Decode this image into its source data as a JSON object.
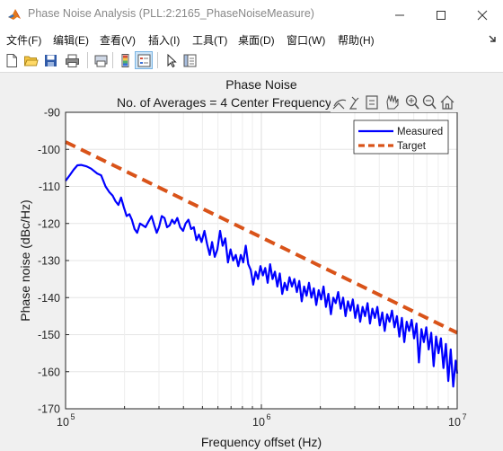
{
  "window": {
    "title": "Phase Noise Analysis (PLL:2:2165_PhaseNoiseMeasure)"
  },
  "menu": {
    "items": [
      {
        "label": "文件(F)"
      },
      {
        "label": "编辑(E)"
      },
      {
        "label": "查看(V)"
      },
      {
        "label": "插入(I)"
      },
      {
        "label": "工具(T)"
      },
      {
        "label": "桌面(D)"
      },
      {
        "label": "窗口(W)"
      },
      {
        "label": "帮助(H)"
      }
    ]
  },
  "toolbar": {
    "buttons": [
      "new-file-icon",
      "open-folder-icon",
      "save-icon",
      "print-icon",
      "colorbar-icon",
      "legend-icon",
      "edit-plot-arrow-icon",
      "property-inspector-icon"
    ]
  },
  "axes_toolbar": {
    "buttons": [
      "export-icon",
      "brush-icon",
      "datatip-icon",
      "zoom-in-icon",
      "zoom-out-icon",
      "home-icon"
    ]
  },
  "chart_data": {
    "type": "line",
    "title": "Phase Noise",
    "subtitle": "No. of Averages = 4 Center Frequency",
    "xlabel": "Frequency offset (Hz)",
    "ylabel": "Phase noise (dBc/Hz)",
    "xscale": "log",
    "xlim": [
      100000,
      10000000
    ],
    "ylim": [
      -170,
      -90
    ],
    "xticks": [
      100000,
      1000000,
      10000000
    ],
    "xtick_labels": [
      {
        "base": "10",
        "exp": "5"
      },
      {
        "base": "10",
        "exp": "6"
      },
      {
        "base": "10",
        "exp": "7"
      }
    ],
    "yticks": [
      -90,
      -100,
      -110,
      -120,
      -130,
      -140,
      -150,
      -160,
      -170
    ],
    "ytick_labels": [
      "-90",
      "-100",
      "-110",
      "-120",
      "-130",
      "-140",
      "-150",
      "-160",
      "-170"
    ],
    "grid": true,
    "legend": "top-right",
    "series": [
      {
        "name": "Measured",
        "color": "#0000ff",
        "style": "solid",
        "points": [
          [
            100000,
            -108.5
          ],
          [
            105000,
            -107
          ],
          [
            110000,
            -105.5
          ],
          [
            115000,
            -104.3
          ],
          [
            120000,
            -104.2
          ],
          [
            128000,
            -104.6
          ],
          [
            135000,
            -105.2
          ],
          [
            145000,
            -106.5
          ],
          [
            152000,
            -107
          ],
          [
            160000,
            -110
          ],
          [
            167000,
            -111.5
          ],
          [
            174000,
            -112.5
          ],
          [
            180000,
            -114
          ],
          [
            186000,
            -115
          ],
          [
            192000,
            -113
          ],
          [
            198000,
            -115.5
          ],
          [
            205000,
            -118
          ],
          [
            212000,
            -117.5
          ],
          [
            218000,
            -119
          ],
          [
            225000,
            -121.5
          ],
          [
            232000,
            -122.5
          ],
          [
            240000,
            -120
          ],
          [
            248000,
            -120.5
          ],
          [
            256000,
            -121
          ],
          [
            265000,
            -119.5
          ],
          [
            275000,
            -118
          ],
          [
            284000,
            -120.5
          ],
          [
            292000,
            -122.5
          ],
          [
            300000,
            -121
          ],
          [
            310000,
            -118
          ],
          [
            320000,
            -118.5
          ],
          [
            330000,
            -121
          ],
          [
            340000,
            -120.5
          ],
          [
            350000,
            -119
          ],
          [
            360000,
            -120
          ],
          [
            372000,
            -118.5
          ],
          [
            385000,
            -121
          ],
          [
            398000,
            -122
          ],
          [
            410000,
            -120
          ],
          [
            424000,
            -119
          ],
          [
            438000,
            -121.5
          ],
          [
            452000,
            -121
          ],
          [
            466000,
            -124.5
          ],
          [
            480000,
            -123
          ],
          [
            495000,
            -125
          ],
          [
            512000,
            -122
          ],
          [
            528000,
            -125.5
          ],
          [
            545000,
            -128.5
          ],
          [
            560000,
            -125
          ],
          [
            578000,
            -129
          ],
          [
            596000,
            -127
          ],
          [
            615000,
            -122
          ],
          [
            634000,
            -126
          ],
          [
            654000,
            -124
          ],
          [
            675000,
            -130.5
          ],
          [
            696000,
            -127
          ],
          [
            718000,
            -130
          ],
          [
            740000,
            -128.5
          ],
          [
            762000,
            -131.5
          ],
          [
            785000,
            -128.5
          ],
          [
            808000,
            -130.5
          ],
          [
            832000,
            -126
          ],
          [
            857000,
            -131
          ],
          [
            882000,
            -132.5
          ],
          [
            908000,
            -136.5
          ],
          [
            935000,
            -133
          ],
          [
            962000,
            -135
          ],
          [
            990000,
            -131.5
          ],
          [
            1018000,
            -134
          ],
          [
            1047000,
            -132
          ],
          [
            1077000,
            -136
          ],
          [
            1108000,
            -131
          ],
          [
            1140000,
            -135
          ],
          [
            1173000,
            -133
          ],
          [
            1207000,
            -137
          ],
          [
            1242000,
            -133.5
          ],
          [
            1278000,
            -139
          ],
          [
            1315000,
            -136
          ],
          [
            1353000,
            -138
          ],
          [
            1392000,
            -134.5
          ],
          [
            1432000,
            -137
          ],
          [
            1474000,
            -135
          ],
          [
            1517000,
            -138.5
          ],
          [
            1561000,
            -135.5
          ],
          [
            1606000,
            -141
          ],
          [
            1653000,
            -137
          ],
          [
            1701000,
            -139.5
          ],
          [
            1750000,
            -136
          ],
          [
            1801000,
            -140
          ],
          [
            1853000,
            -137.5
          ],
          [
            1907000,
            -142
          ],
          [
            1962000,
            -138
          ],
          [
            2019000,
            -140.5
          ],
          [
            2078000,
            -137
          ],
          [
            2138000,
            -142.5
          ],
          [
            2200000,
            -139
          ],
          [
            2264000,
            -144.5
          ],
          [
            2330000,
            -140
          ],
          [
            2398000,
            -141.5
          ],
          [
            2468000,
            -138.5
          ],
          [
            2540000,
            -143
          ],
          [
            2614000,
            -140
          ],
          [
            2690000,
            -145
          ],
          [
            2768000,
            -141
          ],
          [
            2849000,
            -143.5
          ],
          [
            2932000,
            -140.5
          ],
          [
            3017000,
            -145.5
          ],
          [
            3105000,
            -142
          ],
          [
            3196000,
            -146.5
          ],
          [
            3289000,
            -142.5
          ],
          [
            3385000,
            -145
          ],
          [
            3484000,
            -141.5
          ],
          [
            3586000,
            -147
          ],
          [
            3691000,
            -143
          ],
          [
            3799000,
            -145.5
          ],
          [
            3910000,
            -142.5
          ],
          [
            4024000,
            -147.5
          ],
          [
            4142000,
            -144
          ],
          [
            4263000,
            -149
          ],
          [
            4387000,
            -144.5
          ],
          [
            4515000,
            -146.5
          ],
          [
            4647000,
            -143.5
          ],
          [
            4783000,
            -148
          ],
          [
            4923000,
            -145
          ],
          [
            5067000,
            -150.5
          ],
          [
            5215000,
            -145.5
          ],
          [
            5367000,
            -152
          ],
          [
            5524000,
            -146.5
          ],
          [
            5685000,
            -149
          ],
          [
            5851000,
            -146
          ],
          [
            6022000,
            -151
          ],
          [
            6198000,
            -147
          ],
          [
            6379000,
            -157.5
          ],
          [
            6565000,
            -148.5
          ],
          [
            6757000,
            -152
          ],
          [
            6954000,
            -148
          ],
          [
            7157000,
            -154
          ],
          [
            7366000,
            -149.5
          ],
          [
            7581000,
            -158.5
          ],
          [
            7802000,
            -150.5
          ],
          [
            8030000,
            -155
          ],
          [
            8264000,
            -151
          ],
          [
            8505000,
            -159
          ],
          [
            8753000,
            -152.5
          ],
          [
            9009000,
            -162.5
          ],
          [
            9272000,
            -154
          ],
          [
            9543000,
            -164
          ],
          [
            9822000,
            -157
          ],
          [
            10000000,
            -160.5
          ]
        ]
      },
      {
        "name": "Target",
        "color": "#d95319",
        "style": "dashed",
        "points": [
          [
            100000,
            -98
          ],
          [
            10000000,
            -149.5
          ]
        ]
      }
    ]
  }
}
